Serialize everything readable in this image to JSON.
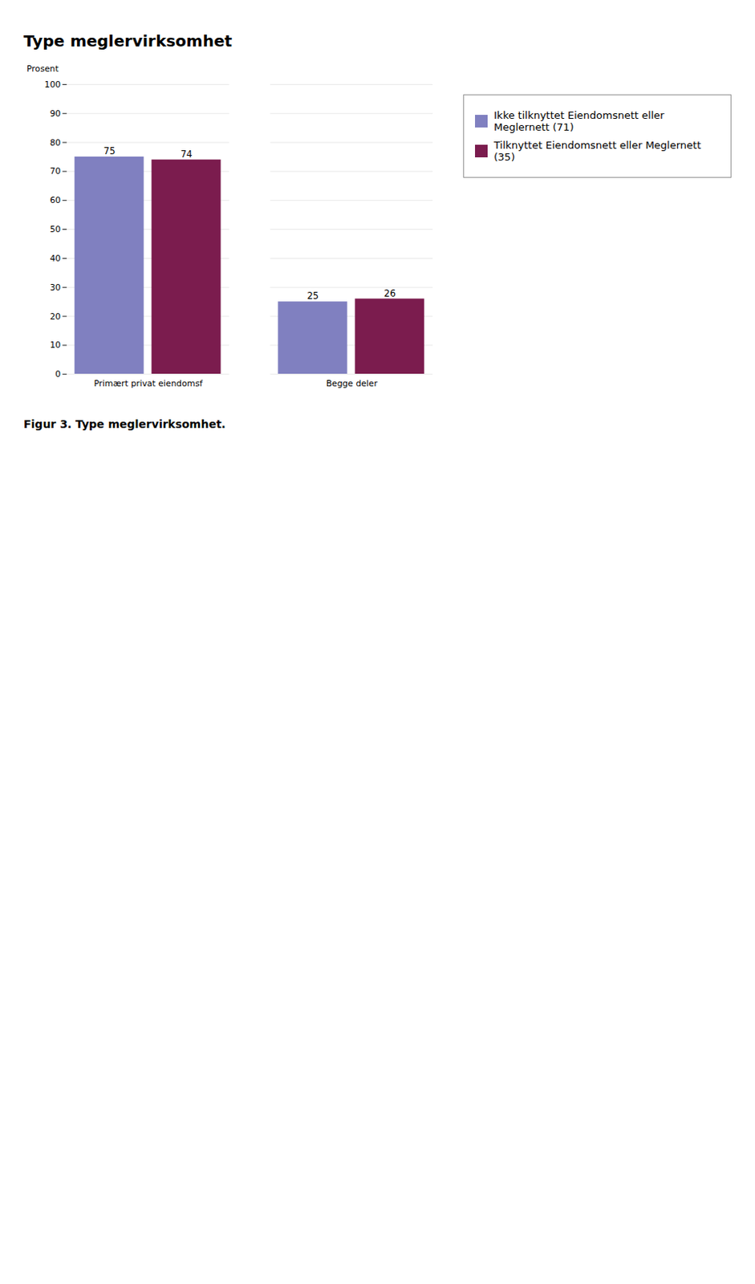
{
  "chart_data": {
    "type": "bar",
    "title": "Type meglervirksomhet",
    "categories": [
      "Primært privat eiendomsf",
      "Begge deler"
    ],
    "series": [
      {
        "name": "Ikke tilknyttet Eiendomsnett eller Meglernett (71)",
        "color": "#8080c0",
        "values": [
          75,
          25
        ]
      },
      {
        "name": "Tilknyttet Eiendomsnett eller Meglernett (35)",
        "color": "#7b1c4e",
        "values": [
          74,
          26
        ]
      }
    ],
    "ylabel": "Prosent",
    "ylim": [
      0,
      100
    ],
    "yticks": [
      0,
      10,
      20,
      30,
      40,
      50,
      60,
      70,
      80,
      90,
      100
    ],
    "grid": true,
    "data_labels": true,
    "legend": "right",
    "caption": "Figur 3.  Type meglervirksomhet."
  }
}
